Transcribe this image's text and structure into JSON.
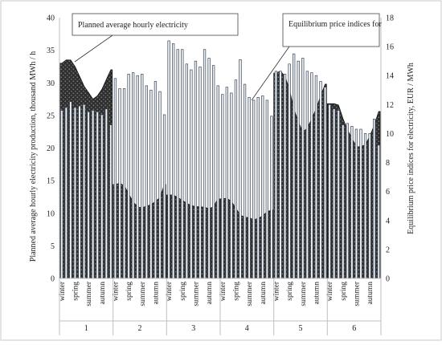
{
  "chart_data": {
    "type": "bar",
    "title": "",
    "ylabel_left": "Planned average hourly electricity production, thousand MWh / h",
    "ylabel_right": "Equilibrium price indices for electricity, EUR / MWh",
    "ylim_left": [
      0,
      40
    ],
    "ylim_right": [
      0,
      18
    ],
    "yticks_left": [
      "0",
      "5",
      "10",
      "15",
      "20",
      "25",
      "30",
      "35",
      "40"
    ],
    "yticks_right": [
      "0",
      "2",
      "4",
      "6",
      "8",
      "10",
      "12",
      "14",
      "16",
      "18"
    ],
    "season_labels": [
      "winter",
      "spring",
      "summer",
      "autumn"
    ],
    "groups": [
      {
        "label": "1",
        "production": [
          33.0,
          33.5,
          33.5,
          32.5,
          31.0,
          29.5,
          28.5,
          27.5,
          28.0,
          29.0,
          30.5,
          32.0
        ],
        "price": [
          11.6,
          11.8,
          12.2,
          11.8,
          11.9,
          12.0,
          11.5,
          11.6,
          11.5,
          11.3,
          11.7,
          10.6
        ]
      },
      {
        "label": "2",
        "production": [
          14.4,
          14.6,
          14.2,
          13.0,
          11.7,
          11.0,
          10.8,
          11.1,
          11.3,
          11.8,
          12.4,
          14.4
        ],
        "price": [
          13.8,
          13.1,
          13.1,
          14.1,
          14.2,
          14.0,
          14.1,
          13.3,
          13.0,
          13.6,
          12.9,
          11.3
        ]
      },
      {
        "label": "3",
        "production": [
          12.8,
          12.8,
          12.4,
          12.0,
          11.5,
          11.2,
          11.0,
          11.0,
          10.9,
          10.7,
          11.0,
          12.2
        ],
        "price": [
          16.4,
          16.2,
          15.8,
          15.8,
          14.8,
          14.4,
          15.0,
          14.6,
          15.8,
          15.2,
          14.7,
          13.3
        ]
      },
      {
        "label": "4",
        "production": [
          12.2,
          12.3,
          11.8,
          10.8,
          9.7,
          9.4,
          9.3,
          9.0,
          9.2,
          9.6,
          10.2,
          10.5
        ],
        "price": [
          12.7,
          13.2,
          12.8,
          13.7,
          15.1,
          13.4,
          12.5,
          12.3,
          12.5,
          12.6,
          12.3,
          11.2
        ]
      },
      {
        "label": "5",
        "production": [
          31.5,
          31.8,
          31.0,
          29.0,
          26.0,
          24.0,
          22.5,
          23.0,
          24.5,
          26.0,
          28.0,
          29.8
        ],
        "price": [
          14.3,
          14.3,
          14.1,
          14.8,
          15.5,
          15.0,
          15.2,
          14.3,
          14.2,
          14.0,
          13.6,
          13.2
        ]
      },
      {
        "label": "6",
        "production": [
          26.8,
          26.8,
          26.6,
          24.5,
          22.8,
          21.5,
          20.2,
          20.2,
          20.5,
          21.8,
          23.5,
          25.6
        ],
        "price": [
          12.0,
          11.7,
          11.6,
          10.6,
          10.7,
          10.5,
          10.3,
          10.3,
          10.0,
          10.0,
          11.0,
          9.2
        ]
      }
    ],
    "callouts": [
      "Planned average hourly electricity",
      "Equilibrium price indices for"
    ],
    "colors": {
      "production_area": "#2a2a2a",
      "bar_fill": "#e9eef4",
      "bar_edge": "#3d4756",
      "axis": "#bfbfbf"
    }
  }
}
